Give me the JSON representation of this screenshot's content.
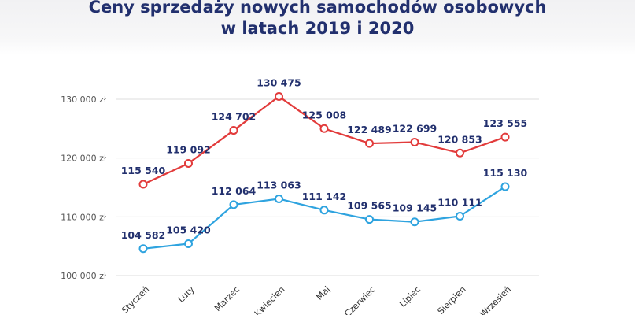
{
  "header": {
    "title_line1": "Ceny sprzedaży nowych samochodów osobowych",
    "title_line2": "w latach 2019 i 2020"
  },
  "colors": {
    "series_2020": "#e23b3b",
    "series_2019": "#2ea3df",
    "label_text": "#22306e",
    "axis_text": "#555555",
    "grid": "#dcdcdc",
    "title": "#22306e"
  },
  "chart_data": {
    "type": "line",
    "title": "Ceny sprzedaży nowych samochodów osobowych w latach 2019 i 2020",
    "xlabel": "",
    "ylabel": "",
    "categories": [
      "Styczeń",
      "Luty",
      "Marzec",
      "Kwiecień",
      "Maj",
      "Czerwiec",
      "Lipiec",
      "Sierpień",
      "Wrzesień"
    ],
    "y_ticks": [
      100000,
      110000,
      120000,
      130000
    ],
    "y_tick_labels": [
      "100 000 zł",
      "110 000 zł",
      "120 000 zł",
      "130 000 zł"
    ],
    "ylim": [
      100000,
      130000
    ],
    "grid": true,
    "legend": "none",
    "series": [
      {
        "key": "2020",
        "color": "#e23b3b",
        "values": [
          115540,
          119092,
          124702,
          130475,
          125008,
          122489,
          122699,
          120853,
          123555
        ],
        "labels": [
          "115 540",
          "119 092",
          "124 702",
          "130 475",
          "125 008",
          "122 489",
          "122 699",
          "120 853",
          "123 555"
        ]
      },
      {
        "key": "2019",
        "color": "#2ea3df",
        "values": [
          104582,
          105420,
          112064,
          113063,
          111142,
          109565,
          109145,
          110111,
          115130
        ],
        "labels": [
          "104 582",
          "105 420",
          "112 064",
          "113 063",
          "111 142",
          "109 565",
          "109 145",
          "110 111",
          "115 130"
        ]
      }
    ]
  }
}
